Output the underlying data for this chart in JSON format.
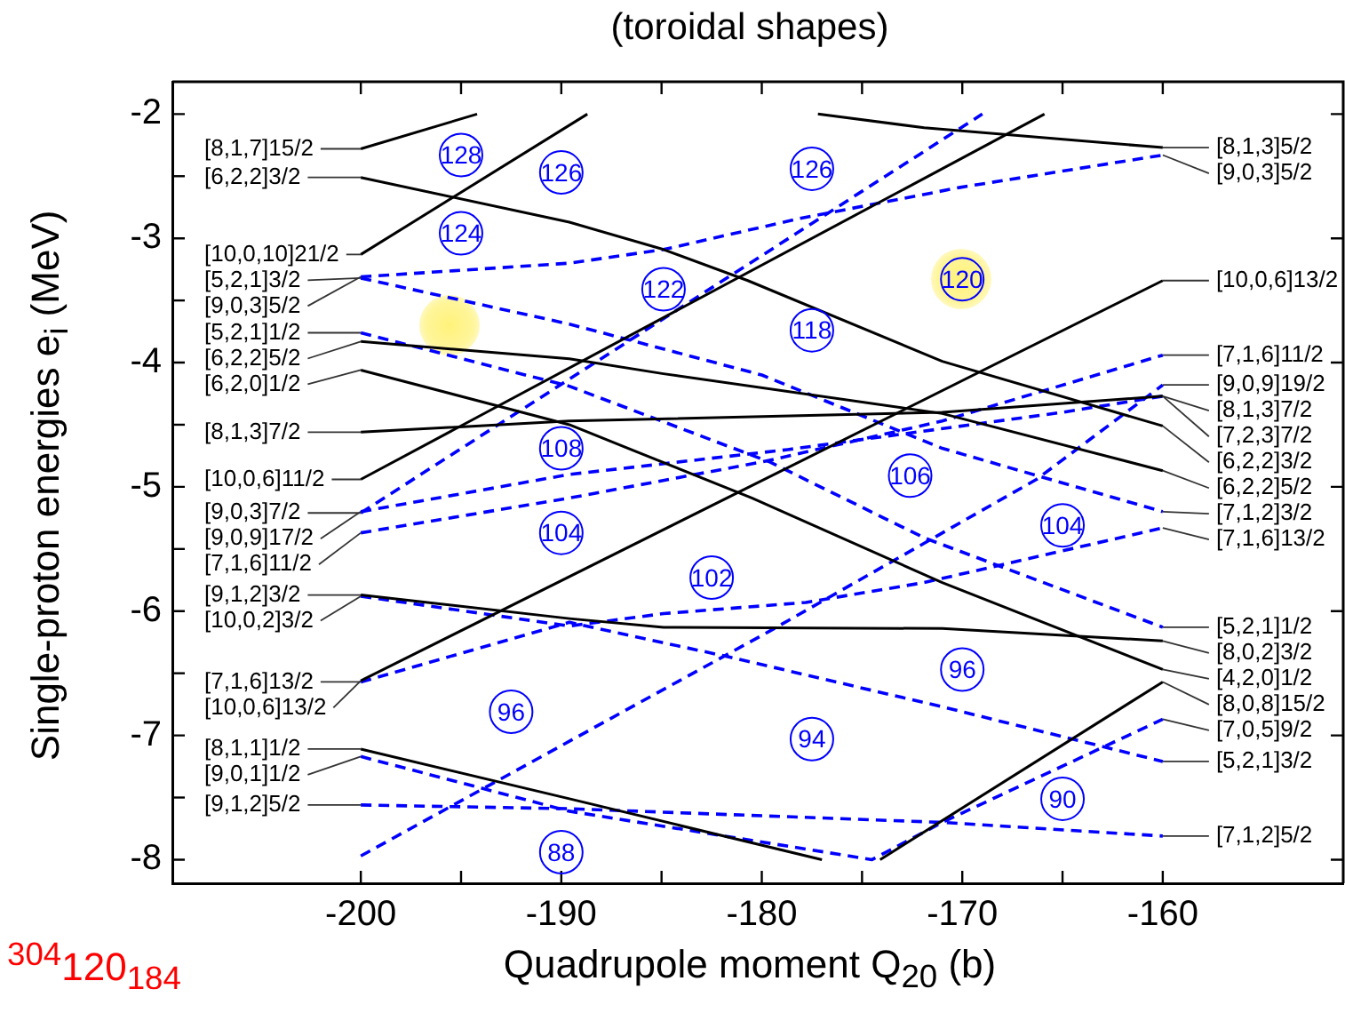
{
  "chart_data": {
    "type": "line",
    "title": "(toroidal shapes)",
    "xlabel": "Quadrupole moment Q$_{20}$ (b)",
    "ylabel": "Single-proton energies e$_{i}$ (MeV)",
    "xlim": [
      -209.4,
      -151
    ],
    "ylim": [
      -8.19,
      -1.74
    ],
    "xticks": [
      -200,
      {
        "value": -195,
        "label": null
      },
      -190,
      {
        "value": -185,
        "label": null
      },
      -180,
      {
        "value": -175,
        "label": null
      },
      -170,
      {
        "value": -165,
        "label": null
      },
      -160
    ],
    "yticks": [
      -2,
      {
        "value": -2.5,
        "label": null
      },
      -3,
      {
        "value": -3.5,
        "label": null
      },
      -4,
      {
        "value": -4.5,
        "label": null
      },
      -5,
      {
        "value": -5.5,
        "label": null
      },
      -6,
      {
        "value": -6.5,
        "label": null
      },
      -7,
      {
        "value": -7.5,
        "label": null
      },
      -8
    ],
    "grid": false,
    "legend": false,
    "marker": "none",
    "series": [
      {
        "color": "#000000",
        "line_style": "solid",
        "x": [
          -200,
          -194.2
        ],
        "values": [
          -2.28,
          -2.0
        ]
      },
      {
        "color": "#000000",
        "line_style": "solid",
        "x": [
          -177.2,
          -171.9,
          -160
        ],
        "values": [
          -2.0,
          -2.11,
          -2.27
        ]
      },
      {
        "color": "#000000",
        "line_style": "solid",
        "x": [
          -200,
          -189.6,
          -184.9,
          -180.7,
          -171,
          -160
        ],
        "values": [
          -2.51,
          -2.87,
          -3.09,
          -3.34,
          -3.99,
          -4.51
        ]
      },
      {
        "color": "#000000",
        "line_style": "solid",
        "x": [
          -200,
          -188.7
        ],
        "values": [
          -3.13,
          -2.0
        ]
      },
      {
        "color": "#000000",
        "line_style": "solid",
        "x": [
          -200,
          -189.6,
          -184.9,
          -171,
          -160
        ],
        "values": [
          -3.83,
          -3.97,
          -4.09,
          -4.41,
          -4.87
        ]
      },
      {
        "color": "#000000",
        "line_style": "solid",
        "x": [
          -200,
          -189.6,
          -180.5,
          -171,
          -160
        ],
        "values": [
          -4.06,
          -4.5,
          -5.09,
          -5.77,
          -6.47
        ]
      },
      {
        "color": "#000000",
        "line_style": "solid",
        "x": [
          -200,
          -189.6,
          -171,
          -160
        ],
        "values": [
          -4.56,
          -4.47,
          -4.4,
          -4.27
        ]
      },
      {
        "color": "#000000",
        "line_style": "solid",
        "x": [
          -200,
          -165.9
        ],
        "values": [
          -4.94,
          -2.0
        ]
      },
      {
        "color": "#000000",
        "line_style": "solid",
        "x": [
          -200,
          -189.6,
          -184.9,
          -171,
          -160
        ],
        "values": [
          -5.87,
          -6.06,
          -6.13,
          -6.14,
          -6.24
        ]
      },
      {
        "color": "#000000",
        "line_style": "solid",
        "x": [
          -200,
          -160
        ],
        "values": [
          -6.56,
          -3.34
        ]
      },
      {
        "color": "#000000",
        "line_style": "solid",
        "x": [
          -200,
          -189.6,
          -177
        ],
        "values": [
          -7.11,
          -7.51,
          -8.0
        ]
      },
      {
        "color": "#000000",
        "line_style": "solid",
        "x": [
          -174.1,
          -160
        ],
        "values": [
          -8.0,
          -6.57
        ]
      },
      {
        "color": "#0000ff",
        "line_style": "dashed",
        "x": [
          -200,
          -189.6,
          -184.9,
          -178.1,
          -170.1,
          -160
        ],
        "values": [
          -3.31,
          -3.2,
          -3.09,
          -2.84,
          -2.59,
          -2.33
        ]
      },
      {
        "color": "#0000ff",
        "line_style": "dashed",
        "x": [
          -200,
          -189.6,
          -180,
          -171,
          -160
        ],
        "values": [
          -3.32,
          -3.69,
          -4.1,
          -4.69,
          -5.2
        ]
      },
      {
        "color": "#0000ff",
        "line_style": "dashed",
        "x": [
          -200,
          -189.6,
          -179.6,
          -171.9,
          -160
        ],
        "values": [
          -3.76,
          -4.19,
          -4.8,
          -5.41,
          -6.13
        ]
      },
      {
        "color": "#0000ff",
        "line_style": "dashed",
        "x": [
          -200,
          -169
        ],
        "values": [
          -5.21,
          -2.0
        ]
      },
      {
        "color": "#0000ff",
        "line_style": "dashed",
        "x": [
          -200,
          -189.6,
          -178.7,
          -165,
          -160
        ],
        "values": [
          -5.2,
          -4.9,
          -4.7,
          -4.4,
          -4.27
        ]
      },
      {
        "color": "#0000ff",
        "line_style": "dashed",
        "x": [
          -200,
          -189.6,
          -180,
          -171,
          -160
        ],
        "values": [
          -5.37,
          -5.09,
          -4.8,
          -4.47,
          -3.94
        ]
      },
      {
        "color": "#0000ff",
        "line_style": "dashed",
        "x": [
          -200,
          -189.6,
          -184.9,
          -177.8,
          -171.9,
          -160
        ],
        "values": [
          -5.88,
          -6.12,
          -6.02,
          -5.93,
          -5.77,
          -5.33
        ]
      },
      {
        "color": "#0000ff",
        "line_style": "dashed",
        "x": [
          -200,
          -189.6,
          -181.6,
          -171,
          -160
        ],
        "values": [
          -6.57,
          -6.09,
          -6.37,
          -6.77,
          -7.21
        ]
      },
      {
        "color": "#0000ff",
        "line_style": "dashed",
        "x": [
          -200,
          -189.6,
          -174.5,
          -171,
          -160
        ],
        "values": [
          -7.17,
          -7.61,
          -8.0,
          -7.7,
          -6.87
        ]
      },
      {
        "color": "#0000ff",
        "line_style": "dashed",
        "x": [
          -200,
          -189.6,
          -171,
          -160
        ],
        "values": [
          -7.56,
          -7.59,
          -7.7,
          -7.81
        ]
      },
      {
        "color": "#0000ff",
        "line_style": "dashed",
        "x": [
          -200,
          -179.6,
          -166.3,
          -160
        ],
        "values": [
          -7.97,
          -6.16,
          -4.94,
          -4.18
        ]
      }
    ],
    "annotations": [
      {
        "text": "[8,1,7]15/2",
        "x": -200,
        "y": -2.28
      },
      {
        "text": "[6,2,2]3/2",
        "x": -200,
        "y": -2.51
      },
      {
        "text": "[10,0,10]21/2",
        "x": -200,
        "y": -3.13
      },
      {
        "text": "[5,2,1]3/2",
        "x": -200,
        "y": -3.32
      },
      {
        "text": "[9,0,3]5/2",
        "x": -200,
        "y": -3.31
      },
      {
        "text": "[5,2,1]1/2",
        "x": -200,
        "y": -3.76
      },
      {
        "text": "[6,2,2]5/2",
        "x": -200,
        "y": -3.83
      },
      {
        "text": "[6,2,0]1/2",
        "x": -200,
        "y": -4.06
      },
      {
        "text": "[8,1,3]7/2",
        "x": -200,
        "y": -4.56
      },
      {
        "text": "[10,0,6]11/2",
        "x": -200,
        "y": -4.94
      },
      {
        "text": "[9,0,3]7/2",
        "x": -200,
        "y": -5.21
      },
      {
        "text": "[9,0,9]17/2",
        "x": -200,
        "y": -5.2
      },
      {
        "text": "[7,1,6]11/2",
        "x": -200,
        "y": -5.37
      },
      {
        "text": "[9,1,2]3/2",
        "x": -200,
        "y": -5.87
      },
      {
        "text": "[10,0,2]3/2",
        "x": -200,
        "y": -5.88
      },
      {
        "text": "[7,1,6]13/2",
        "x": -200,
        "y": -6.57
      },
      {
        "text": "[10,0,6]13/2",
        "x": -200,
        "y": -6.56
      },
      {
        "text": "[8,1,1]1/2",
        "x": -200,
        "y": -7.11
      },
      {
        "text": "[9,0,1]1/2",
        "x": -200,
        "y": -7.17
      },
      {
        "text": "[9,1,2]5/2",
        "x": -200,
        "y": -7.56
      },
      {
        "text": "[8,1,3]5/2",
        "x": -160,
        "y": -2.27
      },
      {
        "text": "[9,0,3]5/2",
        "x": -160,
        "y": -2.33
      },
      {
        "text": "[10,0,6]13/2",
        "x": -160,
        "y": -3.34
      },
      {
        "text": "[7,1,6]11/2",
        "x": -160,
        "y": -3.94
      },
      {
        "text": "[9,0,9]19/2",
        "x": -160,
        "y": -4.18
      },
      {
        "text": "[8,1,3]7/2",
        "x": -160,
        "y": -4.27
      },
      {
        "text": "[7,2,3]7/2",
        "x": -160,
        "y": -4.27
      },
      {
        "text": "[6,2,2]3/2",
        "x": -160,
        "y": -4.51
      },
      {
        "text": "[6,2,2]5/2",
        "x": -160,
        "y": -4.87
      },
      {
        "text": "[7,1,2]3/2",
        "x": -160,
        "y": -5.2
      },
      {
        "text": "[7,1,6]13/2",
        "x": -160,
        "y": -5.33
      },
      {
        "text": "[5,2,1]1/2",
        "x": -160,
        "y": -6.13
      },
      {
        "text": "[8,0,2]3/2",
        "x": -160,
        "y": -6.24
      },
      {
        "text": "[4,2,0]1/2",
        "x": -160,
        "y": -6.47
      },
      {
        "text": "[8,0,8]15/2",
        "x": -160,
        "y": -6.57
      },
      {
        "text": "[7,0,5]9/2",
        "x": -160,
        "y": -6.87
      },
      {
        "text": "[5,2,1]3/2",
        "x": -160,
        "y": -7.21
      },
      {
        "text": "[7,1,2]5/2",
        "x": -160,
        "y": -7.81
      },
      {
        "text": "128",
        "x": -195,
        "y": -2.33
      },
      {
        "text": "126",
        "x": -190,
        "y": -2.47
      },
      {
        "text": "124",
        "x": -195,
        "y": -2.96
      },
      {
        "text": "126",
        "x": -177.5,
        "y": -2.44
      },
      {
        "text": "122",
        "x": -184.9,
        "y": -3.41
      },
      {
        "text": "120",
        "x": -170,
        "y": -3.33
      },
      {
        "text": "118",
        "x": -177.5,
        "y": -3.74
      },
      {
        "text": "108",
        "x": -190,
        "y": -4.69
      },
      {
        "text": "106",
        "x": -172.6,
        "y": -4.91
      },
      {
        "text": "104",
        "x": -190,
        "y": -5.37
      },
      {
        "text": "104",
        "x": -165,
        "y": -5.31
      },
      {
        "text": "102",
        "x": -182.5,
        "y": -5.73
      },
      {
        "text": "96",
        "x": -192.5,
        "y": -6.81
      },
      {
        "text": "96",
        "x": -170,
        "y": -6.47
      },
      {
        "text": "94",
        "x": -177.5,
        "y": -7.03
      },
      {
        "text": "90",
        "x": -165,
        "y": -7.51
      },
      {
        "text": "88",
        "x": -190,
        "y": -7.94
      },
      "$^{304}$120$_{184}$"
    ]
  }
}
